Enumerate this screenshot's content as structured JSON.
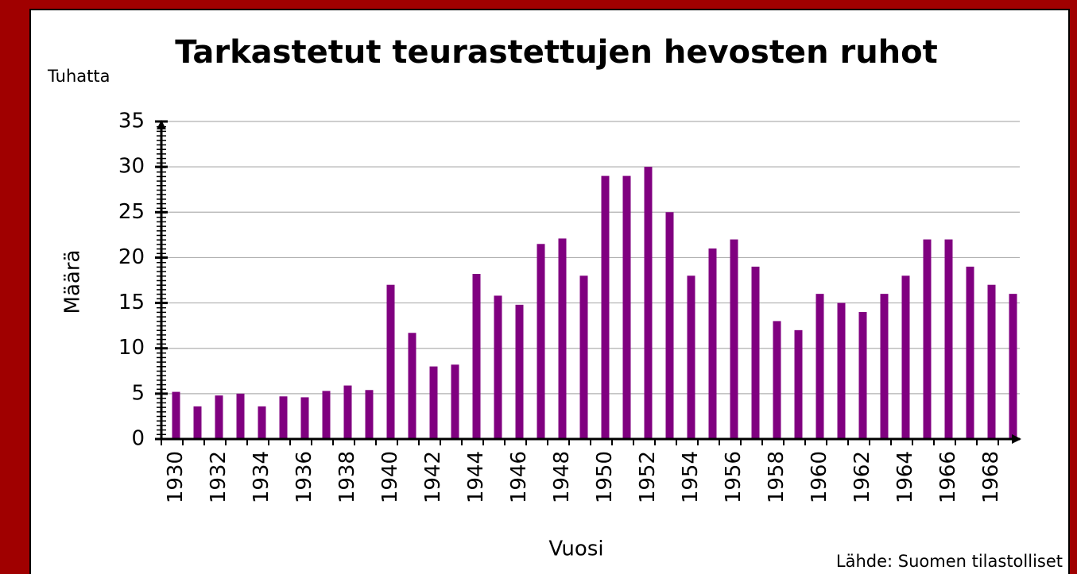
{
  "chart_data": {
    "type": "bar",
    "title": "Tarkastetut teurastettujen hevosten ruhot",
    "ylabel_unit": "Tuhatta",
    "ylabel": "Määrä",
    "xlabel": "Vuosi",
    "source": "Lähde: Suomen tilastolliset",
    "categories": [
      "1930",
      null,
      "1932",
      null,
      "1934",
      null,
      "1936",
      null,
      "1938",
      null,
      "1940",
      null,
      "1942",
      null,
      "1944",
      null,
      "1946",
      null,
      "1948",
      null,
      "1950",
      null,
      "1952",
      null,
      "1954",
      null,
      "1956",
      null,
      "1958",
      null,
      "1960",
      null,
      "1962",
      null,
      "1964",
      null,
      "1966",
      null,
      "1968",
      null
    ],
    "values": [
      5.2,
      3.6,
      4.8,
      5.0,
      3.6,
      4.7,
      4.6,
      5.3,
      5.9,
      5.4,
      17.0,
      11.7,
      8.0,
      8.2,
      18.2,
      15.8,
      14.8,
      21.5,
      22.1,
      18.0,
      29.0,
      29.0,
      30.0,
      25.0,
      18.0,
      21.0,
      22.0,
      19.0,
      13.0,
      12.0,
      16.0,
      15.0,
      14.0,
      16.0,
      18.0,
      22.0,
      22.0,
      19.0,
      17.0,
      16.0
    ],
    "color": "#800080",
    "ylim": [
      0,
      35
    ],
    "yticks": [
      0,
      5,
      10,
      15,
      20,
      25,
      30,
      35
    ],
    "grid": true
  }
}
